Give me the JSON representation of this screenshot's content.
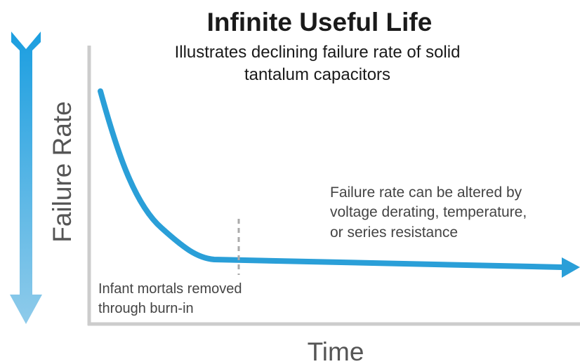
{
  "title": "Infinite Useful Life",
  "subtitle": [
    "Illustrates declining failure rate of solid",
    "tantalum capacitors"
  ],
  "y_axis_label": "Failure Rate",
  "x_axis_label": "Time",
  "annotations": [
    {
      "lines": [
        "Failure rate can be altered by",
        "voltage derating, temperature,",
        "or series resistance"
      ]
    },
    {
      "lines": [
        "Infant mortals removed",
        "through burn-in"
      ]
    }
  ]
}
